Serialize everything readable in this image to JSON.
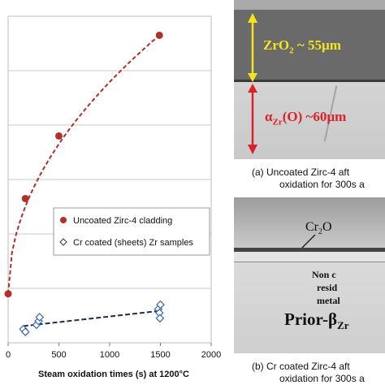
{
  "chart_data": {
    "type": "scatter",
    "xlabel": "Steam oxidation times (s) at 1200°C",
    "ylabel": "",
    "xlim": [
      0,
      2000
    ],
    "xticks": [
      "0",
      "500",
      "1000",
      "1500",
      "2000"
    ],
    "ylim": [
      0,
      6
    ],
    "grid": true,
    "legend_position": "lower-right",
    "series": [
      {
        "name": "Uncoated Zirc-4 cladding",
        "marker": "filled-circle",
        "color": "#b0302a",
        "points": [
          [
            0,
            0.9
          ],
          [
            170,
            2.65
          ],
          [
            500,
            3.8
          ],
          [
            1490,
            5.65
          ]
        ],
        "fit": "dashed-curve"
      },
      {
        "name": "Cr coated (sheets) Zr samples",
        "marker": "open-diamond",
        "color": "#3a66ad",
        "points": [
          [
            150,
            0.25
          ],
          [
            170,
            0.2
          ],
          [
            280,
            0.33
          ],
          [
            300,
            0.4
          ],
          [
            310,
            0.47
          ],
          [
            1480,
            0.62
          ],
          [
            1490,
            0.55
          ],
          [
            1500,
            0.7
          ],
          [
            1495,
            0.45
          ]
        ],
        "fit": "dashed-line"
      }
    ]
  },
  "panel_a": {
    "label1": "ZrO",
    "label1_sub": "2",
    "label1_rest": " ~ 55µm",
    "label2": "α",
    "label2_sub": "Zr",
    "label2_rest": "(O) ~60µm",
    "caption_line1": "(a)  Uncoated Zirc-4 aft",
    "caption_line2": "oxidation for 300s a"
  },
  "panel_b": {
    "oxide_label": "Cr",
    "oxide_sub": "2",
    "oxide_rest": "O",
    "note_line1": "Non c",
    "note_line2": "resid",
    "note_line3": "metal",
    "prior_label": "Prior-β",
    "prior_sub": "Zr",
    "caption_line1": "(b)  Cr coated Zirc-4 aft",
    "caption_line2": "oxidation for 300s a"
  },
  "colors": {
    "uncoated": "#b0302a",
    "coated": "#3a66ad",
    "oxide_arrow": "#f2e51e",
    "alpha_arrow": "#d8232a",
    "oxide_text": "#f2e51e",
    "alpha_text": "#d8232a"
  }
}
